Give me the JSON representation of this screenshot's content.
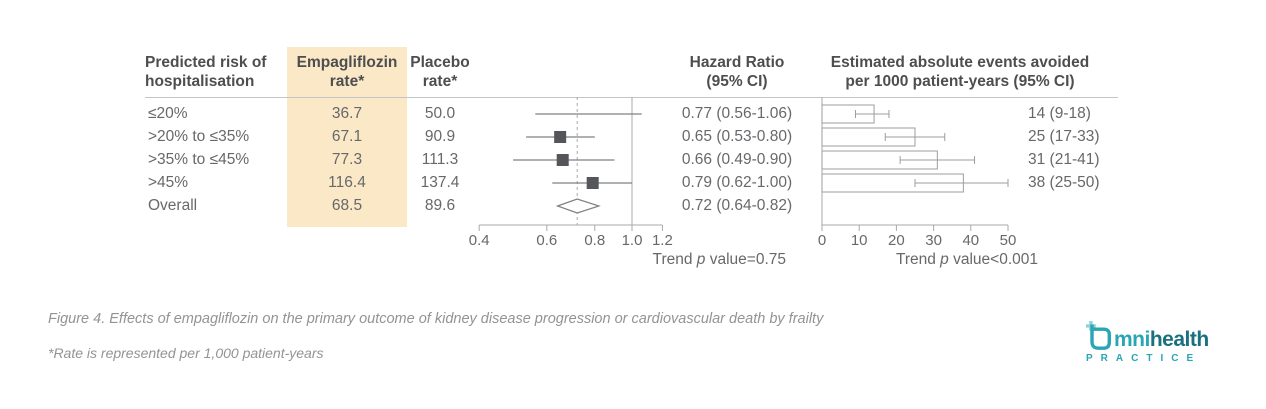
{
  "colors": {
    "highlight_column": "#fae8c6",
    "header_text": "#4d4e50",
    "body_text": "#67686b",
    "grid_line": "#a7a9ac",
    "ci_line": "#7e8083",
    "marker": "#555659",
    "caption_text": "#919396",
    "brand_teal": "#2aa5b4",
    "brand_teal_dark": "#19707e",
    "brand_teal_light": "#8ed3da"
  },
  "table": {
    "columns": {
      "risk": {
        "line1": "Predicted risk of",
        "line2": "hospitalisation"
      },
      "empagliflozin": {
        "line1": "Empagliflozin",
        "line2": "rate*"
      },
      "placebo": {
        "line1": "Placebo",
        "line2": "rate*"
      },
      "hazard_ratio": {
        "line1": "Hazard Ratio",
        "line2": "(95% CI)"
      },
      "events_avoided": {
        "line1": "Estimated absolute events avoided",
        "line2": "per 1000 patient-years (95% CI)"
      }
    },
    "rows": [
      {
        "risk": "≤20%",
        "empagliflozin": "36.7",
        "placebo": "50.0",
        "hazard_ratio": "0.77 (0.56-1.06)",
        "events": "14 (9-18)"
      },
      {
        "risk": ">20% to ≤35%",
        "empagliflozin": "67.1",
        "placebo": "90.9",
        "hazard_ratio": "0.65 (0.53-0.80)",
        "events": "25 (17-33)"
      },
      {
        "risk": ">35% to ≤45%",
        "empagliflozin": "77.3",
        "placebo": "111.3",
        "hazard_ratio": "0.66 (0.49-0.90)",
        "events": "31 (21-41)"
      },
      {
        "risk": ">45%",
        "empagliflozin": "116.4",
        "placebo": "137.4",
        "hazard_ratio": "0.79 (0.62-1.00)",
        "events": "38 (25-50)"
      },
      {
        "risk": "Overall",
        "empagliflozin": "68.5",
        "placebo": "89.6",
        "hazard_ratio": "0.72 (0.64-0.82)",
        "events": ""
      }
    ]
  },
  "chart_data": [
    {
      "type": "scatter",
      "subtype": "forest-plot",
      "title": "Hazard Ratio (95% CI)",
      "x_scale": "log",
      "x_ticks": [
        0.4,
        0.6,
        0.8,
        1.0,
        1.2
      ],
      "xlim": [
        0.4,
        1.2
      ],
      "reference_line": 1.0,
      "points": [
        {
          "label": "≤20%",
          "hr": 0.77,
          "ci_low": 0.56,
          "ci_high": 1.06,
          "marker": false
        },
        {
          "label": ">20% to ≤35%",
          "hr": 0.65,
          "ci_low": 0.53,
          "ci_high": 0.8,
          "marker": true
        },
        {
          "label": ">35% to ≤45%",
          "hr": 0.66,
          "ci_low": 0.49,
          "ci_high": 0.9,
          "marker": true
        },
        {
          "label": ">45%",
          "hr": 0.79,
          "ci_low": 0.62,
          "ci_high": 1.0,
          "marker": true
        }
      ],
      "overall": {
        "label": "Overall",
        "hr": 0.72,
        "ci_low": 0.64,
        "ci_high": 0.82,
        "shape": "diamond"
      },
      "trend_note": {
        "prefix": "Trend ",
        "italic": "p",
        "suffix": " value=0.75"
      }
    },
    {
      "type": "bar",
      "orientation": "horizontal",
      "title": "Estimated absolute events avoided per 1000 patient-years (95% CI)",
      "x_ticks": [
        0,
        10,
        20,
        30,
        40,
        50
      ],
      "xlim": [
        0,
        50
      ],
      "categories": [
        "≤20%",
        ">20% to ≤35%",
        ">35% to ≤45%",
        ">45%"
      ],
      "values": [
        14,
        25,
        31,
        38
      ],
      "ci": [
        [
          9,
          18
        ],
        [
          17,
          33
        ],
        [
          21,
          41
        ],
        [
          25,
          50
        ]
      ],
      "labels": [
        "14 (9-18)",
        "25 (17-33)",
        "31 (21-41)",
        "38 (25-50)"
      ],
      "trend_note": {
        "prefix": "Trend ",
        "italic": "p",
        "suffix": " value<0.001"
      }
    }
  ],
  "footer": {
    "caption": "Figure 4. Effects of empagliflozin on the primary outcome of kidney disease progression or cardiovascular death by frailty",
    "footnote": "*Rate is represented per 1,000 patient-years"
  },
  "logo": {
    "icon": "omnihealth-bubble-plus-icon",
    "word_part1": "mni",
    "word_part2": "health",
    "tagline": "P R A C T I C E",
    "tagline_plain": "PRACTICE"
  }
}
